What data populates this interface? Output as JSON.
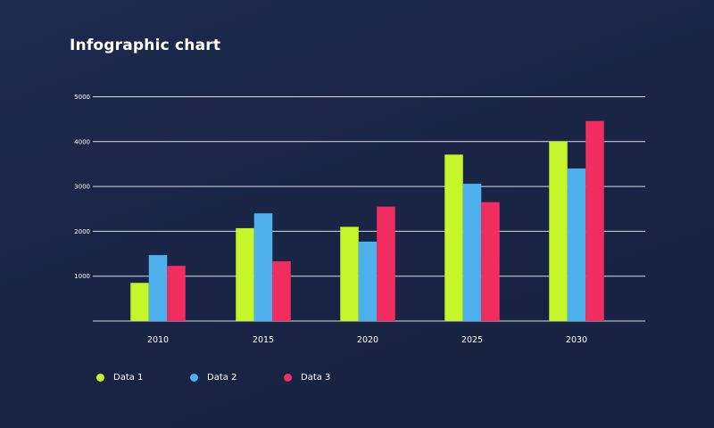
{
  "title": "Infographic chart",
  "colors": {
    "series_1": "#c6f52a",
    "series_2": "#4fb0ee",
    "series_3": "#f12c5e",
    "grid": "#d5d9e6",
    "text": "#ffffff"
  },
  "chart_data": {
    "type": "bar",
    "title": "Infographic chart",
    "xlabel": "",
    "ylabel": "",
    "categories": [
      "2010",
      "2015",
      "2020",
      "2025",
      "2030"
    ],
    "yticks": [
      "1000",
      "2000",
      "3000",
      "4000",
      "5000"
    ],
    "ylim": [
      0,
      5000
    ],
    "grid": true,
    "legend_position": "bottom-left",
    "series": [
      {
        "name": "Data 1",
        "color": "#c6f52a",
        "values": [
          850,
          2070,
          2100,
          3710,
          4000
        ]
      },
      {
        "name": "Data 2",
        "color": "#4fb0ee",
        "values": [
          1470,
          2400,
          1770,
          3060,
          3400
        ]
      },
      {
        "name": "Data 3",
        "color": "#f12c5e",
        "values": [
          1230,
          1330,
          2550,
          2650,
          4460
        ]
      }
    ]
  },
  "legend": {
    "items": [
      {
        "label": "Data 1",
        "color": "#c6f52a"
      },
      {
        "label": "Data 2",
        "color": "#4fb0ee"
      },
      {
        "label": "Data 3",
        "color": "#f12c5e"
      }
    ]
  }
}
